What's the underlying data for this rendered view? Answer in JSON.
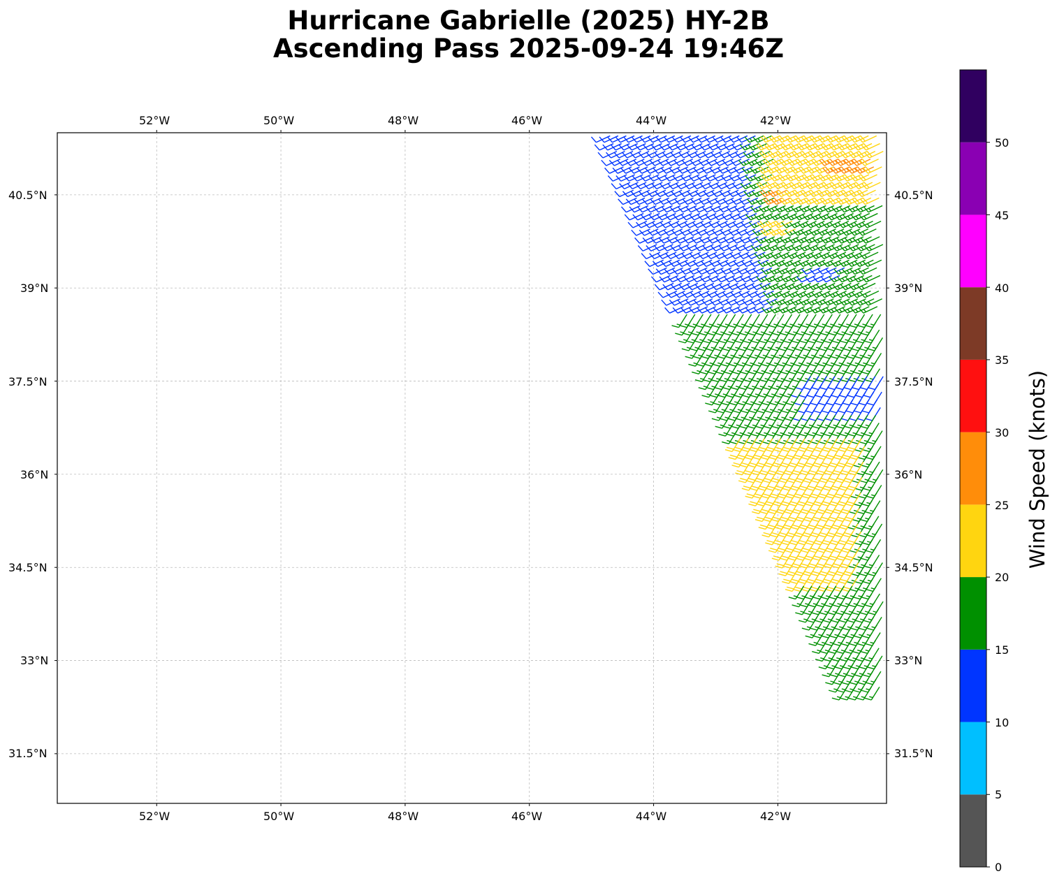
{
  "chart_data": {
    "type": "map",
    "title_line1": "Hurricane Gabrielle (2025) HY-2B",
    "title_line2": "Ascending Pass 2025-09-24 19:46Z",
    "lon_ticks": [
      "52°W",
      "50°W",
      "48°W",
      "46°W",
      "44°W",
      "42°W"
    ],
    "lat_ticks": [
      "40.5°N",
      "39°N",
      "37.5°N",
      "36°N",
      "34.5°N",
      "33°N",
      "31.5°N"
    ],
    "lon_range": [
      -53.6,
      -40.25
    ],
    "lat_range": [
      30.7,
      41.5
    ],
    "grid": true,
    "colorbar": {
      "label": "Wind Speed (knots)",
      "ticks": [
        "0",
        "5",
        "10",
        "15",
        "20",
        "25",
        "30",
        "35",
        "40",
        "45",
        "50"
      ],
      "bins": [
        0,
        5,
        10,
        15,
        20,
        25,
        30,
        35,
        40,
        45,
        50,
        55
      ],
      "colors": [
        "#555555",
        "#00bfff",
        "#0035ff",
        "#009000",
        "#ffd510",
        "#ff8d0a",
        "#ff1010",
        "#7d3a26",
        "#ff00ff",
        "#8a00b3",
        "#300060"
      ]
    },
    "swath_wind": [
      {
        "region": "north edge (40.6–41.5°N, 44.7–42.4°W)",
        "speed_knots": 12,
        "color": "blue"
      },
      {
        "region": "north-east (40.4–41.4°N, 42.0–40.3°W)",
        "speed_knots": 22,
        "color": "yellow"
      },
      {
        "region": "isolated near 41.0°N 40.7°W and 40.5°N 41.9°W",
        "speed_knots": 27,
        "color": "orange"
      },
      {
        "region": "western swath edge (38.7–40.6°N, 44.2–42.0°W)",
        "speed_knots": 12,
        "color": "blue"
      },
      {
        "region": "central (37.7–40.5°N, 42.5–40.3°W)",
        "speed_knots": 17,
        "color": "green"
      },
      {
        "region": "band near 37.3°N (41.5–40.3°W)",
        "speed_knots": 12,
        "color": "blue"
      },
      {
        "region": "south-central (34.2–36.6°N, 42.0–40.6°W)",
        "speed_knots": 22,
        "color": "yellow"
      },
      {
        "region": "south tail (32.5–35.5°N, 41.0–40.3°W)",
        "speed_knots": 17,
        "color": "green"
      }
    ]
  }
}
